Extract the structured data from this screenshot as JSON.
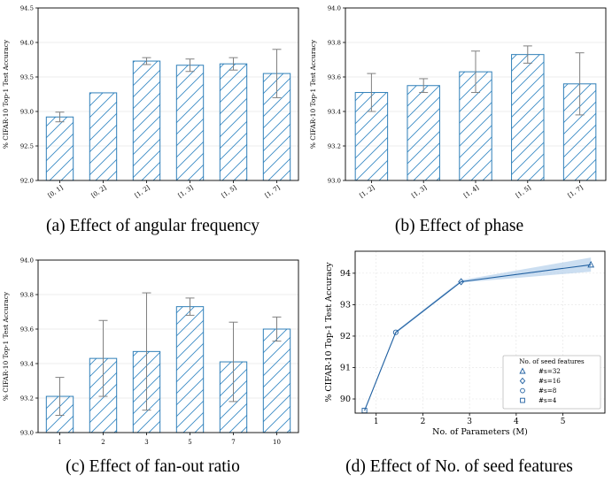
{
  "chart_data": [
    {
      "id": "a",
      "type": "bar",
      "caption": "(a) Effect of angular frequency",
      "ylabel": "% CIFAR-10 Top-1 Test Accuracy",
      "xlabel": "",
      "categories": [
        "[0, 1]",
        "[0, 2]",
        "[1, 2]",
        "[1, 3]",
        "[1, 5]",
        "[1, 7]"
      ],
      "values": [
        92.92,
        93.27,
        93.73,
        93.67,
        93.69,
        93.55
      ],
      "errors": [
        0.07,
        0.0,
        0.05,
        0.09,
        0.09,
        0.35
      ],
      "ylim": [
        92.0,
        94.5
      ],
      "yticks": [
        "92.0",
        "92.5",
        "93.0",
        "93.5",
        "94.0",
        "94.5"
      ],
      "grid": "y",
      "tick_rotation": 35,
      "bar_edge_color": "#2f7fb8",
      "hatch_color": "#3a8bc4",
      "error_color": "#808080"
    },
    {
      "id": "b",
      "type": "bar",
      "caption": "(b) Effect of phase",
      "ylabel": "% CIFAR-10 Top-1 Test Accuracy",
      "xlabel": "",
      "categories": [
        "[1, 2]",
        "[1, 3]",
        "[1, 4]",
        "[1, 5]",
        "[1, 7]"
      ],
      "values": [
        93.51,
        93.55,
        93.63,
        93.73,
        93.56
      ],
      "errors": [
        0.11,
        0.04,
        0.12,
        0.05,
        0.18
      ],
      "ylim": [
        93.0,
        94.0
      ],
      "yticks": [
        "93.0",
        "93.2",
        "93.4",
        "93.6",
        "93.8",
        "94.0"
      ],
      "grid": "y",
      "tick_rotation": 35,
      "bar_edge_color": "#2f7fb8",
      "hatch_color": "#3a8bc4",
      "error_color": "#808080"
    },
    {
      "id": "c",
      "type": "bar",
      "caption": "(c) Effect of fan-out ratio",
      "ylabel": "% CIFAR-10 Top-1 Test Accuracy",
      "xlabel": "",
      "categories": [
        "1",
        "2",
        "3",
        "5",
        "7",
        "10"
      ],
      "values": [
        93.21,
        93.43,
        93.47,
        93.73,
        93.41,
        93.6
      ],
      "errors": [
        0.11,
        0.22,
        0.34,
        0.05,
        0.23,
        0.07
      ],
      "ylim": [
        93.0,
        94.0
      ],
      "yticks": [
        "93.0",
        "93.2",
        "93.4",
        "93.6",
        "93.8",
        "94.0"
      ],
      "grid": "y",
      "tick_rotation": 0,
      "bar_edge_color": "#2f7fb8",
      "hatch_color": "#3a8bc4",
      "error_color": "#808080"
    },
    {
      "id": "d",
      "type": "line",
      "caption": "(d) Effect of No. of seed features",
      "ylabel": "% CIFAR-10 Top-1 Test Accuracy",
      "xlabel": "No. of Parameters (M)",
      "x": [
        0.75,
        1.42,
        2.82,
        5.6
      ],
      "y": [
        89.63,
        92.12,
        93.73,
        94.27
      ],
      "band_lower": [
        89.6,
        92.08,
        93.7,
        94.05
      ],
      "band_upper": [
        89.66,
        92.16,
        93.78,
        94.5
      ],
      "xlim": [
        0.55,
        5.9
      ],
      "ylim": [
        89.55,
        94.7
      ],
      "xticks": [
        1,
        2,
        3,
        4,
        5
      ],
      "yticks": [
        90,
        91,
        92,
        93,
        94
      ],
      "grid": "both",
      "line_color": "#1f5fa0",
      "band_color": "#a8c8e8",
      "legend": {
        "title": "No. of seed features",
        "placement": "lower-right",
        "entries": [
          {
            "label": "#s=32",
            "marker": "triangle"
          },
          {
            "label": "#s=16",
            "marker": "diamond"
          },
          {
            "label": "#s=8",
            "marker": "circle"
          },
          {
            "label": "#s=4",
            "marker": "square"
          }
        ]
      },
      "markers": [
        "square",
        "circle",
        "diamond",
        "triangle"
      ]
    }
  ]
}
